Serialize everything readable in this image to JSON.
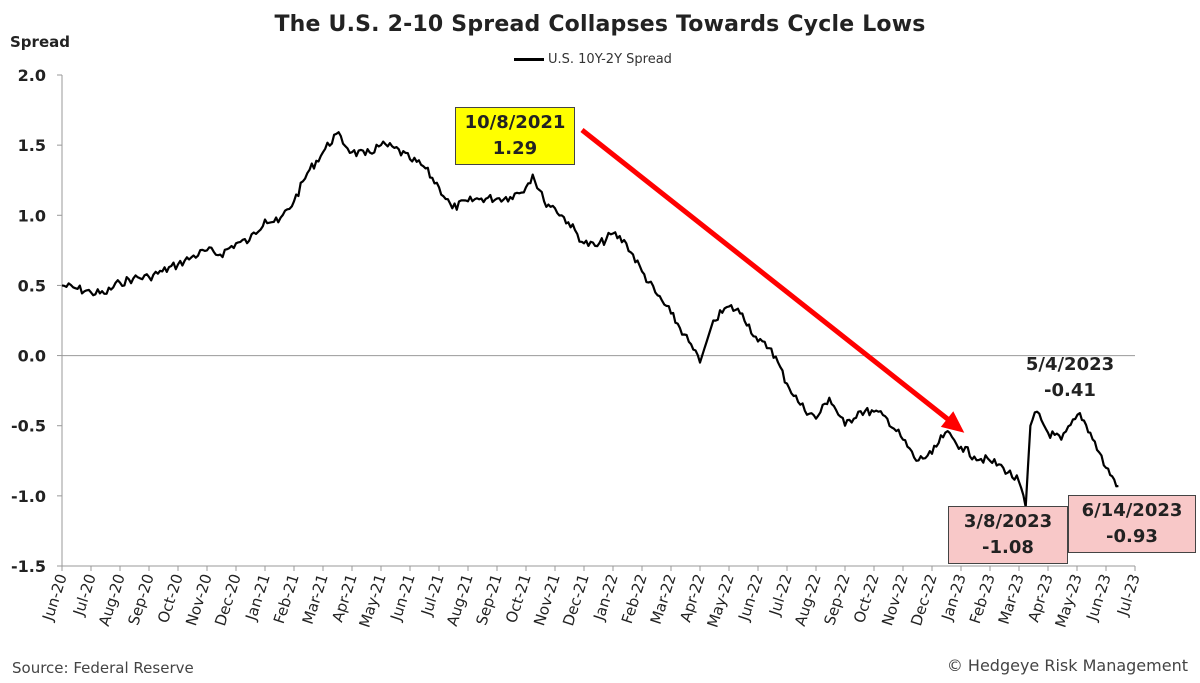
{
  "chart_data": {
    "type": "line",
    "title": "The U.S. 2-10 Spread Collapses Towards Cycle Lows",
    "ylabel": "Spread",
    "xlabel": "",
    "ylim": [
      -1.5,
      2.0
    ],
    "yticks": [
      "2.0",
      "1.5",
      "1.0",
      "0.5",
      "0.0",
      "-0.5",
      "-1.0",
      "-1.5"
    ],
    "xticks": [
      "Jun-20",
      "Jul-20",
      "Aug-20",
      "Sep-20",
      "Oct-20",
      "Nov-20",
      "Dec-20",
      "Jan-21",
      "Feb-21",
      "Mar-21",
      "Apr-21",
      "May-21",
      "Jun-21",
      "Jul-21",
      "Aug-21",
      "Sep-21",
      "Oct-21",
      "Nov-21",
      "Dec-21",
      "Jan-22",
      "Feb-22",
      "Mar-22",
      "Apr-22",
      "May-22",
      "Jun-22",
      "Jul-22",
      "Aug-22",
      "Sep-22",
      "Oct-22",
      "Nov-22",
      "Dec-22",
      "Jan-23",
      "Feb-23",
      "Mar-23",
      "Apr-23",
      "May-23",
      "Jun-23",
      "Jul-23"
    ],
    "grid": false,
    "legend_position": "top-center",
    "series": [
      {
        "name": "U.S. 10Y-2Y Spread",
        "color": "#000000",
        "x": [
          "2020-06-01",
          "2020-06-15",
          "2020-07-01",
          "2020-07-15",
          "2020-08-01",
          "2020-08-15",
          "2020-09-01",
          "2020-09-15",
          "2020-10-01",
          "2020-10-15",
          "2020-11-01",
          "2020-11-15",
          "2020-12-01",
          "2020-12-15",
          "2021-01-01",
          "2021-01-15",
          "2021-02-01",
          "2021-02-15",
          "2021-03-01",
          "2021-03-15",
          "2021-04-01",
          "2021-04-15",
          "2021-05-01",
          "2021-05-15",
          "2021-06-01",
          "2021-06-15",
          "2021-07-01",
          "2021-07-15",
          "2021-08-01",
          "2021-08-15",
          "2021-09-01",
          "2021-09-15",
          "2021-10-01",
          "2021-10-08",
          "2021-10-20",
          "2021-11-01",
          "2021-11-15",
          "2021-12-01",
          "2021-12-15",
          "2022-01-01",
          "2022-01-15",
          "2022-02-01",
          "2022-02-15",
          "2022-03-01",
          "2022-03-15",
          "2022-04-01",
          "2022-04-15",
          "2022-05-01",
          "2022-05-15",
          "2022-06-01",
          "2022-06-15",
          "2022-07-01",
          "2022-07-15",
          "2022-08-01",
          "2022-08-15",
          "2022-09-01",
          "2022-09-15",
          "2022-10-01",
          "2022-10-15",
          "2022-11-01",
          "2022-11-15",
          "2022-12-01",
          "2022-12-15",
          "2023-01-01",
          "2023-01-15",
          "2023-02-01",
          "2023-02-15",
          "2023-03-01",
          "2023-03-08",
          "2023-03-13",
          "2023-03-20",
          "2023-04-01",
          "2023-04-15",
          "2023-05-04",
          "2023-05-15",
          "2023-06-01",
          "2023-06-14"
        ],
        "values": [
          0.5,
          0.48,
          0.45,
          0.44,
          0.52,
          0.55,
          0.56,
          0.6,
          0.65,
          0.7,
          0.75,
          0.72,
          0.8,
          0.82,
          0.97,
          0.95,
          1.1,
          1.3,
          1.45,
          1.58,
          1.45,
          1.43,
          1.5,
          1.48,
          1.4,
          1.35,
          1.2,
          1.05,
          1.1,
          1.12,
          1.12,
          1.13,
          1.2,
          1.29,
          1.1,
          1.05,
          0.95,
          0.8,
          0.78,
          0.87,
          0.8,
          0.6,
          0.45,
          0.3,
          0.15,
          -0.05,
          0.25,
          0.35,
          0.3,
          0.1,
          0.05,
          -0.2,
          -0.35,
          -0.45,
          -0.3,
          -0.5,
          -0.4,
          -0.4,
          -0.45,
          -0.6,
          -0.75,
          -0.7,
          -0.55,
          -0.65,
          -0.72,
          -0.75,
          -0.8,
          -0.9,
          -1.08,
          -0.5,
          -0.4,
          -0.55,
          -0.6,
          -0.41,
          -0.55,
          -0.8,
          -0.93
        ]
      }
    ],
    "annotations": [
      {
        "date_label": "10/8/2021",
        "value_label": "1.29",
        "style": "yellow"
      },
      {
        "date_label": "5/4/2023",
        "value_label": "-0.41",
        "style": "plain"
      },
      {
        "date_label": "3/8/2023",
        "value_label": "-1.08",
        "style": "pink"
      },
      {
        "date_label": "6/14/2023",
        "value_label": "-0.93",
        "style": "pink"
      }
    ],
    "arrow": {
      "from": "2021-10-08",
      "to": "2023-01-15",
      "color": "#ff0000"
    }
  },
  "footer": {
    "source": "Source: Federal Reserve",
    "copyright": "© Hedgeye Risk Management"
  }
}
